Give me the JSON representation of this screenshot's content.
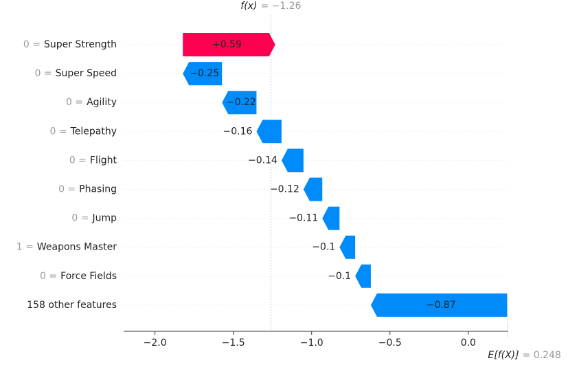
{
  "chart_data": {
    "type": "waterfall",
    "categories": [
      "Super Strength",
      "Super Speed",
      "Agility",
      "Telepathy",
      "Flight",
      "Phasing",
      "Jump",
      "Weapons Master",
      "Force Fields",
      "158 other features"
    ],
    "feature_values": [
      "0 =",
      "0 =",
      "0 =",
      "0 =",
      "0 =",
      "0 =",
      "0 =",
      "1 =",
      "0 =",
      null
    ],
    "values": [
      0.59,
      -0.25,
      -0.22,
      -0.16,
      -0.14,
      -0.12,
      -0.11,
      -0.1,
      -0.1,
      -0.87
    ],
    "value_labels": [
      "+0.59",
      "−0.25",
      "−0.22",
      "−0.16",
      "−0.14",
      "−0.12",
      "−0.11",
      "−0.1",
      "−0.1",
      "−0.87"
    ],
    "positive_color": "#ff0051",
    "negative_color": "#008bfb",
    "fx_name": "f(x)",
    "fx": -1.26,
    "fx_label": "= −1.26",
    "e_name": "E[f(X)]",
    "e_fx": 0.248,
    "e_label": "= 0.248",
    "xlim": [
      -2.2,
      0.255
    ],
    "xticks": [
      {
        "value": -2.0,
        "label": "−2.0"
      },
      {
        "value": -1.5,
        "label": "−1.5"
      },
      {
        "value": -1.0,
        "label": "−1.0"
      },
      {
        "value": -0.5,
        "label": "−0.5"
      },
      {
        "value": 0,
        "label": "0.0"
      }
    ]
  }
}
